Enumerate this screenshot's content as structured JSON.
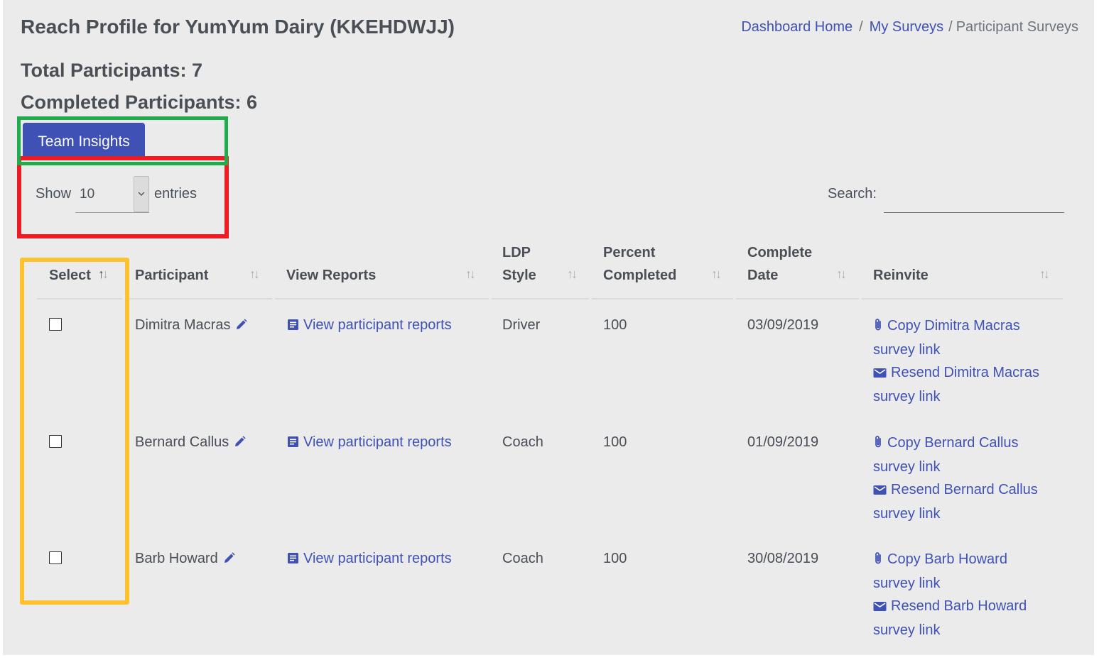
{
  "header": {
    "title": "Reach Profile for YumYum Dairy (KKEHDWJJ)",
    "breadcrumb": {
      "home": "Dashboard Home",
      "sep1": "/",
      "surveys": "My Surveys",
      "sep2": "/",
      "current": "Participant Surveys"
    }
  },
  "stats": {
    "total": "Total Participants: 7",
    "completed": "Completed Participants: 6"
  },
  "team_insights_label": "Team Insights",
  "table_controls": {
    "show_label": "Show",
    "length_value": "10",
    "entries_label": "entries",
    "search_label": "Search:",
    "search_value": ""
  },
  "table": {
    "headers": {
      "select": "Select",
      "participant": "Participant",
      "view_reports": "View Reports",
      "ldp_style_line1": "LDP",
      "ldp_style_line2": "Style",
      "percent_line1": "Percent",
      "percent_line2": "Completed",
      "date_line1": "Complete",
      "date_line2": "Date",
      "reinvite": "Reinvite"
    },
    "sort_icon": "↑↓",
    "rows": [
      {
        "participant": "Dimitra Macras",
        "report_link": "View participant reports",
        "ldp_style": "Driver",
        "percent": "100",
        "date": "03/09/2019",
        "copy_line1": "Copy Dimitra Macras",
        "copy_line2": "survey link",
        "resend_line1": "Resend Dimitra Macras",
        "resend_line2": "survey link"
      },
      {
        "participant": "Bernard Callus",
        "report_link": "View participant reports",
        "ldp_style": "Coach",
        "percent": "100",
        "date": "01/09/2019",
        "copy_line1": "Copy Bernard Callus",
        "copy_line2": "survey link",
        "resend_line1": "Resend Bernard Callus",
        "resend_line2": "survey link"
      },
      {
        "participant": "Barb Howard",
        "report_link": "View participant reports",
        "ldp_style": "Coach",
        "percent": "100",
        "date": "30/08/2019",
        "copy_line1": "Copy Barb Howard",
        "copy_line2": "survey link",
        "resend_line1": "Resend Barb Howard",
        "resend_line2": "survey link"
      }
    ]
  },
  "icons": {
    "edit": "pencil-icon",
    "report": "document-icon",
    "copy": "paperclip-icon",
    "resend": "envelope-icon",
    "sort": "sort-arrows-icon",
    "dropdown": "chevron-down-icon"
  },
  "colors": {
    "accent": "#3f51b5",
    "background": "#ebebeb",
    "highlight_green": "#1fac4b",
    "highlight_red": "#ed1c24",
    "highlight_yellow": "#ffc12e"
  }
}
